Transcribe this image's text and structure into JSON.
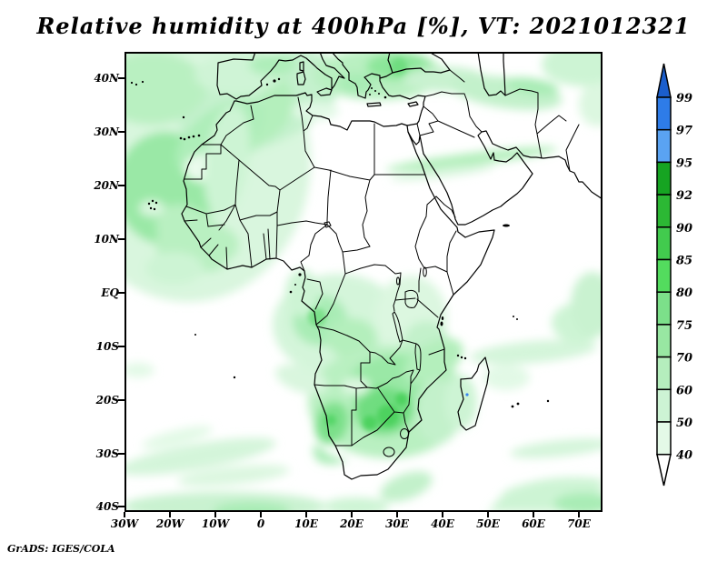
{
  "title": "Relative humidity at 400hPa [%], VT: 2021012321",
  "attribution": "GrADS: IGES/COLA",
  "axes": {
    "lat_ticks": [
      "40N",
      "30N",
      "20N",
      "10N",
      "EQ",
      "10S",
      "20S",
      "30S",
      "40S"
    ],
    "lon_ticks": [
      "30W",
      "20W",
      "10W",
      "0",
      "10E",
      "20E",
      "30E",
      "40E",
      "50E",
      "60E",
      "70E"
    ]
  },
  "colorbar": {
    "tick_labels": [
      "99",
      "97",
      "95",
      "92",
      "90",
      "85",
      "80",
      "75",
      "70",
      "60",
      "50",
      "40"
    ],
    "above_color": "#1b5ecc",
    "below_color": "#ffffff",
    "cell_colors": [
      "#2e7ce8",
      "#5aa3f2",
      "#16a422",
      "#2cb834",
      "#42cb4e",
      "#53dc5e",
      "#7ce08a",
      "#98e7a2",
      "#b5eebd",
      "#cdf3d4",
      "#e4f9e7"
    ]
  },
  "chart_data": {
    "type": "heatmap",
    "title": "Relative humidity at 400hPa [%], VT: 2021012321",
    "variable": "Relative humidity",
    "pressure_level": "400hPa",
    "units": "%",
    "valid_time": "2021012321",
    "projection": "lat-lon map of Africa and surroundings",
    "lon_range": [
      "30W",
      "75E"
    ],
    "lat_range": [
      "41S",
      "45N"
    ],
    "x_tick_labels": [
      "30W",
      "20W",
      "10W",
      "0",
      "10E",
      "20E",
      "30E",
      "40E",
      "50E",
      "60E",
      "70E"
    ],
    "y_tick_labels": [
      "40N",
      "30N",
      "20N",
      "10N",
      "EQ",
      "10S",
      "20S",
      "30S",
      "40S"
    ],
    "contour_levels": [
      40,
      50,
      60,
      70,
      75,
      80,
      85,
      90,
      92,
      95,
      97,
      99
    ],
    "palette_low_to_high": [
      "#ffffff",
      "#e4f9e7",
      "#cdf3d4",
      "#b5eebd",
      "#98e7a2",
      "#7ce08a",
      "#53dc5e",
      "#42cb4e",
      "#2cb834",
      "#16a422",
      "#5aa3f2",
      "#2e7ce8",
      "#1b5ecc"
    ],
    "legend_position": "right",
    "grid": false,
    "high_value_regions": [
      "Large cyclonic swirl of 50-80% over the NE Atlantic west of Morocco and the Canary Islands",
      "Iberia, Italy, Greece and Turkey (up to ~80%)",
      "Narrow band across Egypt, the Red Sea and central Arabia",
      "Band over northern Iraq / Iran",
      "Gulf of Guinea, Cameroon, Gabon and the Congo basin",
      "Broad maximum (~85-90%) over Angola, Zambia, Zimbabwe and Mozambique with a coastal vortex off Namibia",
      "Mozambique Channel and SW Indian Ocean streaks east of Madagascar",
      "Zonal streaks over the South Atlantic near 30S-40S"
    ],
    "source_label": "GrADS: IGES/COLA"
  }
}
